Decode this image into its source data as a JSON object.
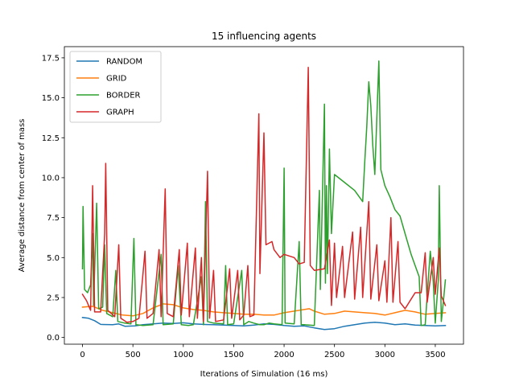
{
  "chart_data": {
    "type": "line",
    "title": "15 influencing agents",
    "xlabel": "Iterations of Simulation (16 ms)",
    "ylabel": "Average distance from center of mass",
    "xlim": [
      -180,
      3780
    ],
    "ylim": [
      -0.42,
      18.2
    ],
    "xticks": [
      0,
      500,
      1000,
      1500,
      2000,
      2500,
      3000,
      3500
    ],
    "xtick_labels": [
      "0",
      "500",
      "1000",
      "1500",
      "2000",
      "2500",
      "3000",
      "3500"
    ],
    "yticks": [
      0.0,
      2.5,
      5.0,
      7.5,
      10.0,
      12.5,
      15.0,
      17.5
    ],
    "ytick_labels": [
      "0.0",
      "2.5",
      "5.0",
      "7.5",
      "10.0",
      "12.5",
      "15.0",
      "17.5"
    ],
    "grid": false,
    "legend_position": "top-left",
    "series": [
      {
        "name": "RANDOM",
        "color": "#1f77b4",
        "points": [
          [
            0,
            1.25
          ],
          [
            60,
            1.2
          ],
          [
            120,
            1.05
          ],
          [
            180,
            0.82
          ],
          [
            300,
            0.8
          ],
          [
            360,
            0.85
          ],
          [
            420,
            0.7
          ],
          [
            520,
            0.72
          ],
          [
            600,
            0.8
          ],
          [
            700,
            0.85
          ],
          [
            800,
            0.9
          ],
          [
            900,
            0.88
          ],
          [
            1000,
            0.92
          ],
          [
            1100,
            0.85
          ],
          [
            1200,
            0.82
          ],
          [
            1300,
            0.8
          ],
          [
            1400,
            0.78
          ],
          [
            1500,
            0.75
          ],
          [
            1600,
            0.72
          ],
          [
            1700,
            0.78
          ],
          [
            1800,
            0.85
          ],
          [
            1900,
            0.82
          ],
          [
            2000,
            0.75
          ],
          [
            2100,
            0.7
          ],
          [
            2200,
            0.72
          ],
          [
            2300,
            0.6
          ],
          [
            2400,
            0.5
          ],
          [
            2500,
            0.55
          ],
          [
            2600,
            0.7
          ],
          [
            2700,
            0.8
          ],
          [
            2800,
            0.9
          ],
          [
            2900,
            0.95
          ],
          [
            3000,
            0.9
          ],
          [
            3100,
            0.8
          ],
          [
            3200,
            0.85
          ],
          [
            3300,
            0.78
          ],
          [
            3400,
            0.75
          ],
          [
            3500,
            0.72
          ],
          [
            3600,
            0.75
          ]
        ]
      },
      {
        "name": "GRID",
        "color": "#ff7f0e",
        "points": [
          [
            0,
            1.9
          ],
          [
            100,
            1.95
          ],
          [
            200,
            1.7
          ],
          [
            300,
            1.55
          ],
          [
            400,
            1.4
          ],
          [
            500,
            1.35
          ],
          [
            600,
            1.5
          ],
          [
            700,
            1.85
          ],
          [
            800,
            2.1
          ],
          [
            900,
            2.05
          ],
          [
            1000,
            1.85
          ],
          [
            1100,
            1.75
          ],
          [
            1200,
            1.7
          ],
          [
            1300,
            1.6
          ],
          [
            1400,
            1.55
          ],
          [
            1500,
            1.5
          ],
          [
            1600,
            1.45
          ],
          [
            1700,
            1.45
          ],
          [
            1800,
            1.4
          ],
          [
            1900,
            1.4
          ],
          [
            2000,
            1.55
          ],
          [
            2100,
            1.65
          ],
          [
            2200,
            1.75
          ],
          [
            2250,
            1.8
          ],
          [
            2300,
            1.65
          ],
          [
            2400,
            1.45
          ],
          [
            2500,
            1.5
          ],
          [
            2600,
            1.65
          ],
          [
            2700,
            1.6
          ],
          [
            2800,
            1.55
          ],
          [
            2900,
            1.5
          ],
          [
            3000,
            1.4
          ],
          [
            3100,
            1.55
          ],
          [
            3200,
            1.7
          ],
          [
            3300,
            1.6
          ],
          [
            3400,
            1.45
          ],
          [
            3500,
            1.5
          ],
          [
            3600,
            1.55
          ]
        ]
      },
      {
        "name": "BORDER",
        "color": "#2ca02c",
        "points": [
          [
            0,
            4.3
          ],
          [
            5,
            8.2
          ],
          [
            20,
            3.0
          ],
          [
            50,
            2.8
          ],
          [
            80,
            3.3
          ],
          [
            100,
            6.5
          ],
          [
            110,
            2.0
          ],
          [
            140,
            8.4
          ],
          [
            160,
            1.8
          ],
          [
            200,
            1.9
          ],
          [
            220,
            5.8
          ],
          [
            240,
            1.5
          ],
          [
            300,
            1.3
          ],
          [
            330,
            4.2
          ],
          [
            350,
            1.0
          ],
          [
            420,
            0.9
          ],
          [
            480,
            0.85
          ],
          [
            510,
            6.2
          ],
          [
            530,
            0.8
          ],
          [
            600,
            0.75
          ],
          [
            700,
            0.8
          ],
          [
            780,
            5.2
          ],
          [
            800,
            0.8
          ],
          [
            900,
            0.85
          ],
          [
            950,
            4.5
          ],
          [
            980,
            0.8
          ],
          [
            1050,
            0.75
          ],
          [
            1100,
            0.8
          ],
          [
            1180,
            3.8
          ],
          [
            1200,
            0.8
          ],
          [
            1220,
            8.5
          ],
          [
            1240,
            1.0
          ],
          [
            1300,
            0.9
          ],
          [
            1400,
            0.85
          ],
          [
            1420,
            4.5
          ],
          [
            1440,
            0.8
          ],
          [
            1500,
            0.85
          ],
          [
            1580,
            4.2
          ],
          [
            1600,
            0.8
          ],
          [
            1650,
            1.0
          ],
          [
            1700,
            0.9
          ],
          [
            1760,
            0.8
          ],
          [
            1800,
            0.8
          ],
          [
            1850,
            0.9
          ],
          [
            1900,
            0.85
          ],
          [
            1980,
            0.8
          ],
          [
            2000,
            10.6
          ],
          [
            2010,
            0.9
          ],
          [
            2100,
            0.85
          ],
          [
            2150,
            6.0
          ],
          [
            2170,
            0.8
          ],
          [
            2200,
            0.8
          ],
          [
            2300,
            0.75
          ],
          [
            2350,
            9.2
          ],
          [
            2360,
            3.0
          ],
          [
            2400,
            14.6
          ],
          [
            2410,
            3.4
          ],
          [
            2420,
            9.5
          ],
          [
            2430,
            4.0
          ],
          [
            2450,
            11.8
          ],
          [
            2470,
            6.5
          ],
          [
            2500,
            10.2
          ],
          [
            2600,
            9.7
          ],
          [
            2700,
            9.2
          ],
          [
            2780,
            8.5
          ],
          [
            2800,
            11.0
          ],
          [
            2820,
            13.2
          ],
          [
            2840,
            16.0
          ],
          [
            2860,
            14.5
          ],
          [
            2880,
            12.0
          ],
          [
            2900,
            10.2
          ],
          [
            2940,
            17.3
          ],
          [
            2960,
            10.5
          ],
          [
            3000,
            9.5
          ],
          [
            3050,
            8.8
          ],
          [
            3100,
            8.0
          ],
          [
            3150,
            7.6
          ],
          [
            3200,
            6.5
          ],
          [
            3260,
            5.2
          ],
          [
            3300,
            4.5
          ],
          [
            3340,
            3.8
          ],
          [
            3360,
            0.75
          ],
          [
            3400,
            0.8
          ],
          [
            3450,
            5.4
          ],
          [
            3480,
            3.5
          ],
          [
            3500,
            0.9
          ],
          [
            3530,
            3.6
          ],
          [
            3540,
            9.5
          ],
          [
            3560,
            1.0
          ],
          [
            3580,
            2.2
          ],
          [
            3600,
            3.6
          ]
        ]
      },
      {
        "name": "GRAPH",
        "color": "#d62728",
        "points": [
          [
            0,
            2.7
          ],
          [
            40,
            2.3
          ],
          [
            80,
            1.7
          ],
          [
            90,
            5.0
          ],
          [
            100,
            9.5
          ],
          [
            120,
            1.6
          ],
          [
            180,
            1.6
          ],
          [
            220,
            6.5
          ],
          [
            230,
            10.9
          ],
          [
            250,
            1.7
          ],
          [
            320,
            1.3
          ],
          [
            360,
            5.8
          ],
          [
            380,
            1.2
          ],
          [
            440,
            0.95
          ],
          [
            500,
            1.0
          ],
          [
            560,
            1.2
          ],
          [
            620,
            5.4
          ],
          [
            640,
            1.2
          ],
          [
            700,
            1.5
          ],
          [
            760,
            5.5
          ],
          [
            780,
            1.3
          ],
          [
            820,
            9.3
          ],
          [
            840,
            1.5
          ],
          [
            900,
            1.3
          ],
          [
            960,
            5.5
          ],
          [
            980,
            1.4
          ],
          [
            1040,
            5.9
          ],
          [
            1060,
            1.3
          ],
          [
            1120,
            5.6
          ],
          [
            1140,
            1.2
          ],
          [
            1180,
            5.0
          ],
          [
            1200,
            1.0
          ],
          [
            1240,
            10.4
          ],
          [
            1260,
            1.2
          ],
          [
            1300,
            4.2
          ],
          [
            1320,
            1.0
          ],
          [
            1400,
            1.1
          ],
          [
            1460,
            4.3
          ],
          [
            1480,
            1.2
          ],
          [
            1540,
            4.2
          ],
          [
            1560,
            1.1
          ],
          [
            1600,
            1.4
          ],
          [
            1640,
            4.5
          ],
          [
            1660,
            1.3
          ],
          [
            1700,
            1.4
          ],
          [
            1750,
            14.0
          ],
          [
            1760,
            4.0
          ],
          [
            1800,
            12.8
          ],
          [
            1820,
            5.8
          ],
          [
            1880,
            6.0
          ],
          [
            1900,
            5.5
          ],
          [
            1960,
            5.0
          ],
          [
            2000,
            5.2
          ],
          [
            2100,
            5.0
          ],
          [
            2150,
            4.6
          ],
          [
            2200,
            4.7
          ],
          [
            2240,
            16.9
          ],
          [
            2260,
            4.5
          ],
          [
            2300,
            4.2
          ],
          [
            2400,
            4.3
          ],
          [
            2450,
            6.1
          ],
          [
            2470,
            2.0
          ],
          [
            2500,
            5.9
          ],
          [
            2520,
            2.5
          ],
          [
            2580,
            5.7
          ],
          [
            2600,
            2.5
          ],
          [
            2680,
            6.6
          ],
          [
            2700,
            2.4
          ],
          [
            2760,
            6.9
          ],
          [
            2780,
            2.5
          ],
          [
            2840,
            8.5
          ],
          [
            2860,
            2.4
          ],
          [
            2920,
            5.8
          ],
          [
            2940,
            2.3
          ],
          [
            3000,
            4.8
          ],
          [
            3020,
            2.2
          ],
          [
            3060,
            7.5
          ],
          [
            3080,
            2.2
          ],
          [
            3130,
            6.0
          ],
          [
            3150,
            2.2
          ],
          [
            3200,
            1.8
          ],
          [
            3300,
            2.8
          ],
          [
            3360,
            2.8
          ],
          [
            3400,
            5.3
          ],
          [
            3420,
            2.2
          ],
          [
            3480,
            5.0
          ],
          [
            3500,
            2.7
          ],
          [
            3540,
            5.6
          ],
          [
            3560,
            2.6
          ],
          [
            3600,
            2.0
          ]
        ]
      }
    ]
  }
}
